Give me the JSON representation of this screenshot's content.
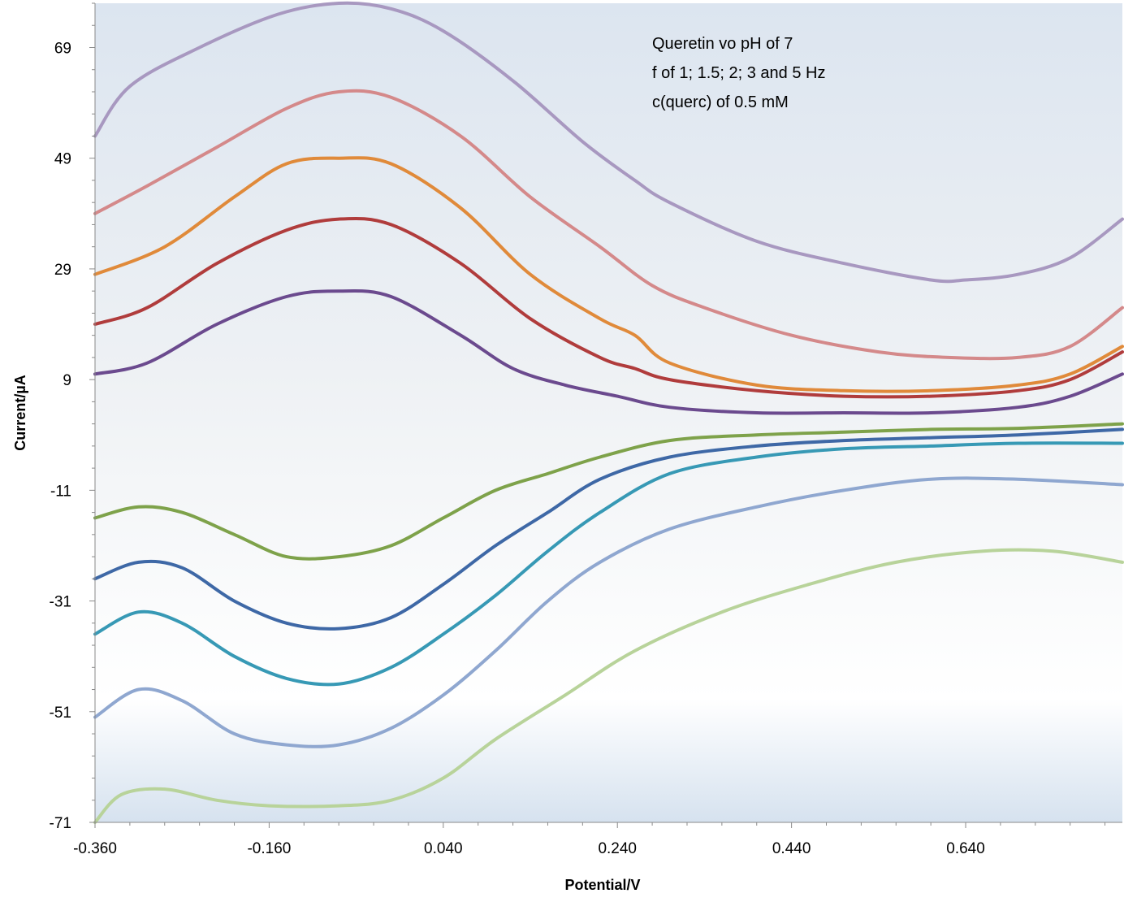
{
  "chart_data": {
    "type": "line",
    "title": "",
    "xlabel": "Potential/V",
    "ylabel": "Current/µA",
    "xlim": [
      -0.36,
      0.82
    ],
    "ylim": [
      -71,
      77
    ],
    "x_ticks": [
      "-0.360",
      "-0.160",
      "0.040",
      "0.240",
      "0.440",
      "0.640"
    ],
    "y_ticks": [
      "69",
      "49",
      "29",
      "9",
      "-11",
      "-31",
      "-51",
      "-71"
    ],
    "grid": false,
    "legend": "none",
    "annotations": [
      "Queretin vo pH of 7",
      "f of 1; 1.5; 2; 3 and 5 Hz",
      "c(querc) of 0.5 mM"
    ],
    "series": [
      {
        "color": "#a898c0",
        "x": [
          -0.36,
          -0.32,
          -0.24,
          -0.15,
          -0.08,
          -0.02,
          0.04,
          0.12,
          0.2,
          0.26,
          0.3,
          0.4,
          0.5,
          0.6,
          0.64,
          0.7,
          0.76,
          0.82
        ],
        "y": [
          53,
          62,
          69,
          75,
          77,
          76,
          72,
          63,
          52,
          45,
          41,
          34,
          30,
          27,
          27,
          28,
          31,
          38
        ]
      },
      {
        "color": "#d4898a",
        "x": [
          -0.36,
          -0.3,
          -0.22,
          -0.14,
          -0.08,
          -0.02,
          0.06,
          0.14,
          0.22,
          0.28,
          0.34,
          0.44,
          0.54,
          0.62,
          0.7,
          0.76,
          0.82
        ],
        "y": [
          39,
          44,
          51,
          58,
          61,
          60,
          53,
          42,
          33,
          26,
          22,
          17,
          14,
          13,
          13,
          15,
          22
        ]
      },
      {
        "color": "#e08a3a",
        "x": [
          -0.36,
          -0.28,
          -0.2,
          -0.14,
          -0.08,
          -0.02,
          0.06,
          0.14,
          0.22,
          0.26,
          0.3,
          0.4,
          0.5,
          0.6,
          0.7,
          0.76,
          0.82
        ],
        "y": [
          28,
          33,
          42,
          48,
          49,
          48,
          40,
          28,
          20,
          17,
          12,
          8,
          7,
          7,
          8,
          10,
          15
        ]
      },
      {
        "color": "#b03c3c",
        "x": [
          -0.36,
          -0.3,
          -0.22,
          -0.14,
          -0.08,
          -0.02,
          0.06,
          0.14,
          0.22,
          0.26,
          0.3,
          0.4,
          0.5,
          0.6,
          0.7,
          0.76,
          0.82
        ],
        "y": [
          19,
          22,
          30,
          36,
          38,
          37,
          30,
          20,
          13,
          11,
          9,
          7,
          6,
          6,
          7,
          9,
          14
        ]
      },
      {
        "color": "#6b4a8e",
        "x": [
          -0.36,
          -0.3,
          -0.22,
          -0.14,
          -0.08,
          -0.02,
          0.06,
          0.12,
          0.18,
          0.24,
          0.3,
          0.4,
          0.5,
          0.6,
          0.7,
          0.76,
          0.82
        ],
        "y": [
          10,
          12,
          19,
          24,
          25,
          24,
          17,
          11,
          8,
          6,
          4,
          3,
          3,
          3,
          4,
          6,
          10
        ]
      },
      {
        "color": "#7ea24a",
        "x": [
          -0.36,
          -0.31,
          -0.26,
          -0.2,
          -0.14,
          -0.08,
          -0.02,
          0.04,
          0.1,
          0.16,
          0.22,
          0.3,
          0.4,
          0.5,
          0.6,
          0.7,
          0.82
        ],
        "y": [
          -16,
          -14,
          -15,
          -19,
          -23,
          -23,
          -21,
          -16,
          -11,
          -8,
          -5,
          -2,
          -1,
          -0.5,
          0,
          0.2,
          1
        ]
      },
      {
        "color": "#3e68a6",
        "x": [
          -0.36,
          -0.31,
          -0.26,
          -0.2,
          -0.14,
          -0.08,
          -0.02,
          0.04,
          0.1,
          0.16,
          0.22,
          0.3,
          0.4,
          0.5,
          0.6,
          0.7,
          0.82
        ],
        "y": [
          -27,
          -24,
          -25,
          -31,
          -35,
          -36,
          -34,
          -28,
          -21,
          -15,
          -9,
          -5,
          -3,
          -2,
          -1.5,
          -1,
          0
        ]
      },
      {
        "color": "#3799b5",
        "x": [
          -0.36,
          -0.31,
          -0.26,
          -0.2,
          -0.14,
          -0.08,
          -0.02,
          0.04,
          0.1,
          0.16,
          0.22,
          0.3,
          0.4,
          0.5,
          0.6,
          0.7,
          0.82
        ],
        "y": [
          -37,
          -33,
          -35,
          -41,
          -45,
          -46,
          -43,
          -37,
          -30,
          -22,
          -15,
          -8,
          -5,
          -3.5,
          -3,
          -2.5,
          -2.5
        ]
      },
      {
        "color": "#8fa7d0",
        "x": [
          -0.36,
          -0.31,
          -0.26,
          -0.2,
          -0.14,
          -0.08,
          -0.02,
          0.04,
          0.1,
          0.16,
          0.22,
          0.3,
          0.4,
          0.5,
          0.6,
          0.7,
          0.82
        ],
        "y": [
          -52,
          -47,
          -49,
          -55,
          -57,
          -57,
          -54,
          -48,
          -40,
          -31,
          -24,
          -18,
          -14,
          -11,
          -9,
          -9,
          -10
        ]
      },
      {
        "color": "#b8d39a",
        "x": [
          -0.36,
          -0.33,
          -0.28,
          -0.22,
          -0.16,
          -0.08,
          -0.02,
          0.04,
          0.1,
          0.18,
          0.26,
          0.36,
          0.46,
          0.56,
          0.66,
          0.74,
          0.82
        ],
        "y": [
          -71,
          -66,
          -65,
          -67,
          -68,
          -68,
          -67,
          -63,
          -56,
          -48,
          -40,
          -33,
          -28,
          -24,
          -22,
          -22,
          -24
        ]
      }
    ]
  }
}
